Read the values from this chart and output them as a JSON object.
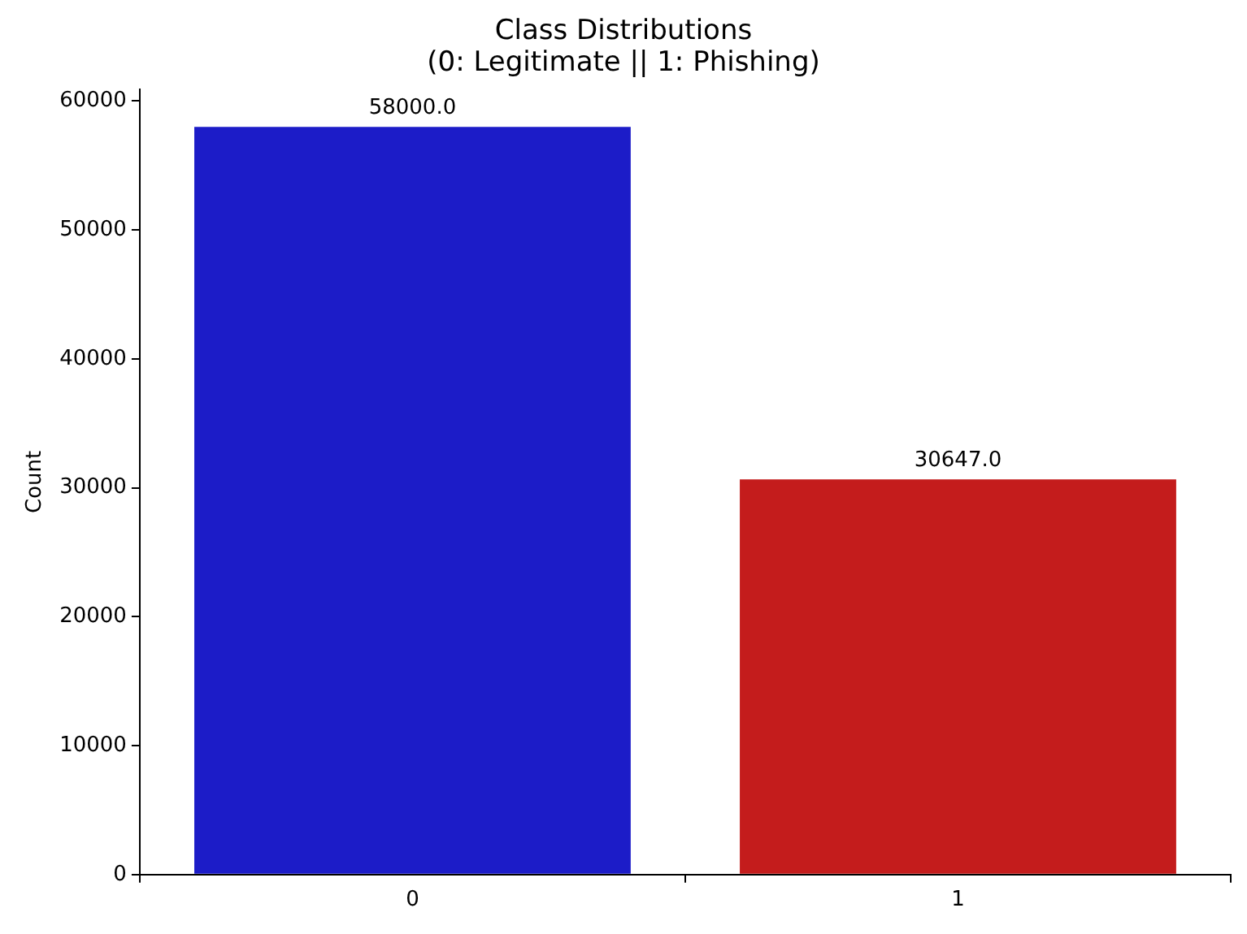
{
  "chart_data": {
    "type": "bar",
    "title": "Class Distributions\n(0: Legitimate || 1: Phishing)",
    "ylabel": "Count",
    "categories": [
      "0",
      "1"
    ],
    "values": [
      58000,
      30647
    ],
    "colors": [
      "#1c1cc8",
      "#c41c1c"
    ],
    "value_labels": [
      "58000.0",
      "30647.0"
    ],
    "ylim": [
      0,
      60900
    ],
    "yticks": [
      0,
      10000,
      20000,
      30000,
      40000,
      50000,
      60000
    ],
    "grid": false,
    "legend": false
  }
}
